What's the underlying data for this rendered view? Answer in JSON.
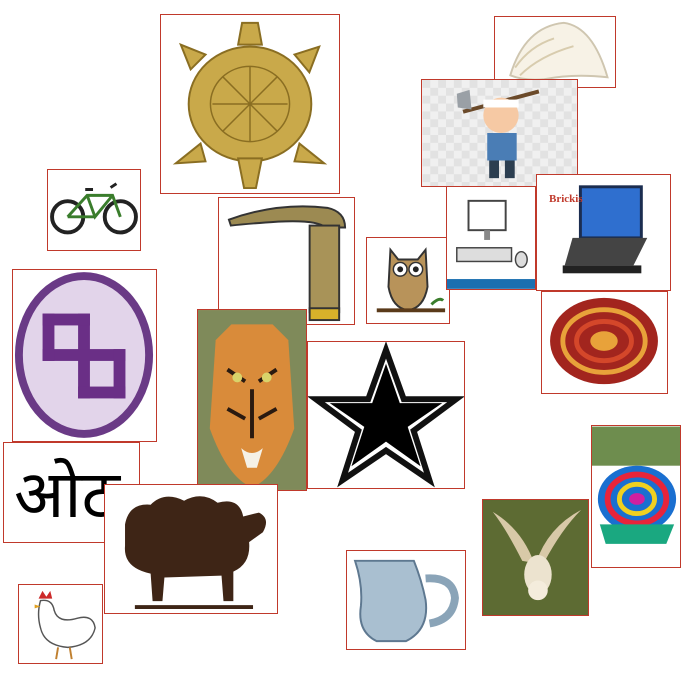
{
  "tiles": [
    {
      "name": "tortoise"
    },
    {
      "name": "conch-shell"
    },
    {
      "name": "boy-with-axe"
    },
    {
      "name": "bicycle"
    },
    {
      "name": "walking-stick"
    },
    {
      "name": "owl-drawing"
    },
    {
      "name": "desktop-computer"
    },
    {
      "name": "laptop-computer"
    },
    {
      "name": "swastika-symbol"
    },
    {
      "name": "tiger"
    },
    {
      "name": "star"
    },
    {
      "name": "woven-basket"
    },
    {
      "name": "devanagari-word"
    },
    {
      "name": "sheep-silhouette"
    },
    {
      "name": "hen"
    },
    {
      "name": "jug"
    },
    {
      "name": "flying-owl"
    },
    {
      "name": "colorful-basket"
    }
  ],
  "laptop": {
    "brand": "Brickis"
  },
  "devanagari": {
    "text": "ओठ"
  }
}
